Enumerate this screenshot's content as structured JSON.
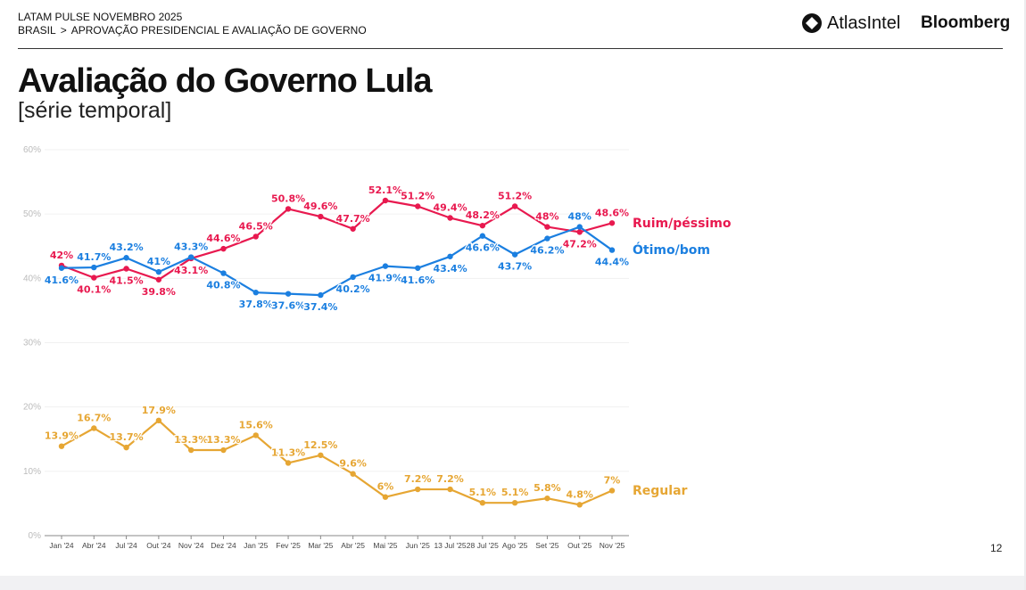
{
  "header": {
    "line1": "LATAM PULSE NOVEMBRO 2025",
    "breadcrumb_1": "BRASIL",
    "breadcrumb_sep": ">",
    "breadcrumb_2": "APROVAÇÃO PRESIDENCIAL E AVALIAÇÃO DE GOVERNO",
    "logo_atlas": "AtlasIntel",
    "logo_bloomberg": "Bloomberg"
  },
  "title": "Avaliação do Governo Lula",
  "subtitle": "[série temporal]",
  "page_number": "12",
  "chart_data": {
    "type": "line",
    "categories": [
      "Jan '24",
      "Abr '24",
      "Jul '24",
      "Out '24",
      "Nov '24",
      "Dez '24",
      "Jan '25",
      "Fev '25",
      "Mar '25",
      "Abr '25",
      "Mai '25",
      "Jun '25",
      "13 Jul '25",
      "28 Jul '25",
      "Ago '25",
      "Set '25",
      "Out '25",
      "Nov '25"
    ],
    "yticks": [
      "0%",
      "10%",
      "20%",
      "30%",
      "40%",
      "50%",
      "60%"
    ],
    "ylim": [
      0,
      60
    ],
    "grid": true,
    "legend": "right (end-of-line labels)",
    "series": [
      {
        "name": "Ruim/péssimo",
        "color": "#e8194f",
        "values": [
          42,
          40.1,
          41.5,
          39.8,
          43.1,
          44.6,
          46.5,
          50.8,
          49.6,
          47.7,
          52.1,
          51.2,
          49.4,
          48.2,
          51.2,
          48,
          47.2,
          48.6
        ],
        "labels": [
          "42%",
          "40.1%",
          "41.5%",
          "39.8%",
          "43.1%",
          "44.6%",
          "46.5%",
          "50.8%",
          "49.6%",
          "47.7%",
          "52.1%",
          "51.2%",
          "49.4%",
          "48.2%",
          "51.2%",
          "48%",
          "47.2%",
          "48.6%"
        ]
      },
      {
        "name": "Ótimo/bom",
        "color": "#1b7fe0",
        "values": [
          41.6,
          41.7,
          43.2,
          41,
          43.3,
          40.8,
          37.8,
          37.6,
          37.4,
          40.2,
          41.9,
          41.6,
          43.4,
          46.6,
          43.7,
          46.2,
          48,
          44.4
        ],
        "labels": [
          "41.6%",
          "41.7%",
          "43.2%",
          "41%",
          "43.3%",
          "40.8%",
          "37.8%",
          "37.6%",
          "37.4%",
          "40.2%",
          "41.9%",
          "41.6%",
          "43.4%",
          "46.6%",
          "43.7%",
          "46.2%",
          "48%",
          "44.4%"
        ]
      },
      {
        "name": "Regular",
        "color": "#e6a633",
        "values": [
          13.9,
          16.7,
          13.7,
          17.9,
          13.3,
          13.3,
          15.6,
          11.3,
          12.5,
          9.6,
          6,
          7.2,
          7.2,
          5.1,
          5.1,
          5.8,
          4.8,
          7
        ],
        "labels": [
          "13.9%",
          "16.7%",
          "13.7%",
          "17.9%",
          "13.3%",
          "13.3%",
          "15.6%",
          "11.3%",
          "12.5%",
          "9.6%",
          "6%",
          "7.2%",
          "7.2%",
          "5.1%",
          "5.1%",
          "5.8%",
          "4.8%",
          "7%"
        ]
      }
    ]
  }
}
